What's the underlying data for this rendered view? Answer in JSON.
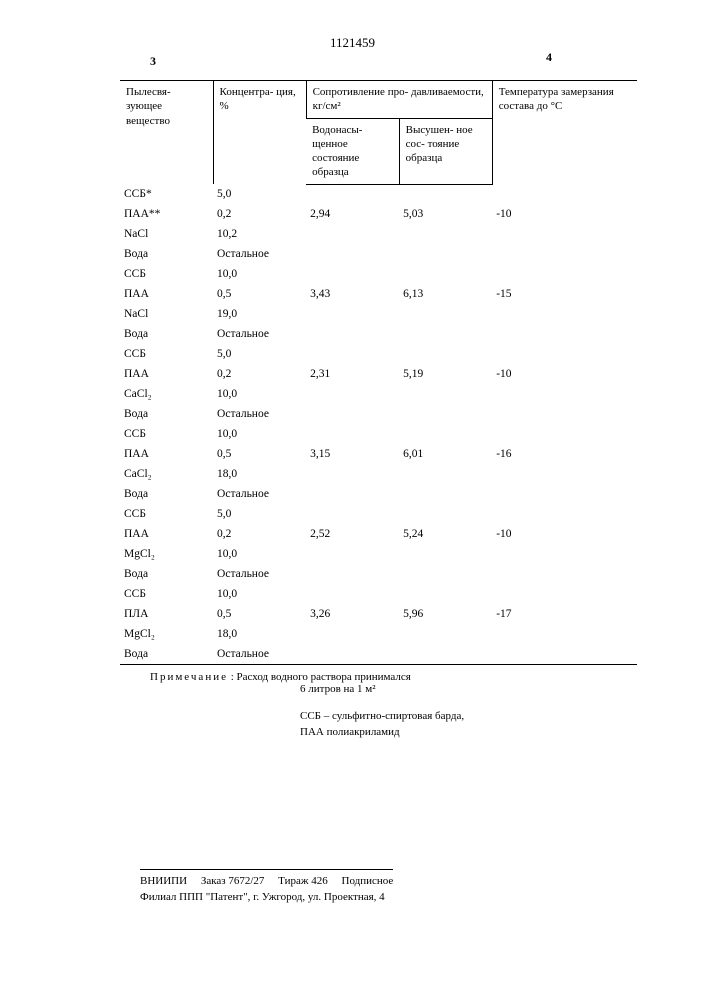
{
  "header": {
    "left_page_num": "3",
    "doc_number": "1121459",
    "right_page_num": "4"
  },
  "table": {
    "head": {
      "col1": "Пылесвя-\nзующее\nвещество",
      "col2": "Концентра-\nция, %",
      "col3": "Сопротивление про-\nдавливаемости, кг/см²",
      "col4": "Температура\nзамерзания\nсостава до °C",
      "col3a": "Водонасы-\nщенное\nсостояние\nобразца",
      "col3b": "Высушен-\nное сос-\nтояние\nобразца"
    },
    "groups": [
      {
        "rows": [
          {
            "sub": "ССБ*",
            "conc": "5,0"
          },
          {
            "sub": "ПАА**",
            "conc": "0,2",
            "wet": "2,94",
            "dry": "5,03",
            "temp": "-10"
          },
          {
            "sub": "NaCl",
            "conc": "10,2"
          },
          {
            "sub": "Вода",
            "conc": "Остальное"
          }
        ]
      },
      {
        "rows": [
          {
            "sub": "ССБ",
            "conc": "10,0"
          },
          {
            "sub": "ПАА",
            "conc": "0,5",
            "wet": "3,43",
            "dry": "6,13",
            "temp": "-15"
          },
          {
            "sub": "NaCl",
            "conc": "19,0"
          },
          {
            "sub": "Вода",
            "conc": "Остальное"
          }
        ]
      },
      {
        "rows": [
          {
            "sub": "ССБ",
            "conc": "5,0"
          },
          {
            "sub": "ПАА",
            "conc": "0,2",
            "wet": "2,31",
            "dry": "5,19",
            "temp": "-10"
          },
          {
            "sub": "CaCl₂",
            "conc": "10,0"
          },
          {
            "sub": "Вода",
            "conc": "Остальное"
          }
        ]
      },
      {
        "rows": [
          {
            "sub": "ССБ",
            "conc": "10,0"
          },
          {
            "sub": "ПАА",
            "conc": "0,5",
            "wet": "3,15",
            "dry": "6,01",
            "temp": "-16"
          },
          {
            "sub": "CaCl₂",
            "conc": "18,0"
          },
          {
            "sub": "Вода",
            "conc": "Остальное"
          }
        ]
      },
      {
        "rows": [
          {
            "sub": "ССБ",
            "conc": "5,0"
          },
          {
            "sub": "ПАА",
            "conc": "0,2",
            "wet": "2,52",
            "dry": "5,24",
            "temp": "-10"
          },
          {
            "sub": "MgCl₂",
            "conc": "10,0"
          },
          {
            "sub": "Вода",
            "conc": "Остальное"
          }
        ]
      },
      {
        "rows": [
          {
            "sub": "ССБ",
            "conc": "10,0"
          },
          {
            "sub": "ПЛА",
            "conc": "0,5",
            "wet": "3,26",
            "dry": "5,96",
            "temp": "-17"
          },
          {
            "sub": "MgCl₂",
            "conc": "18,0"
          },
          {
            "sub": "Вода",
            "conc": "Остальное"
          }
        ]
      }
    ]
  },
  "note": {
    "label": "Примечание",
    "text1": ": Расход водного раствора принимался",
    "text2": "6 литров на 1 м²"
  },
  "abbrev": {
    "line1": "ССБ – сульфитно-спиртовая барда,",
    "line2": "ПАА    полиакриламид"
  },
  "imprint": {
    "line1_a": "ВНИИПИ",
    "line1_b": "Заказ 7672/27",
    "line1_c": "Тираж 426",
    "line1_d": "Подписное",
    "line2": "Филиал ППП \"Патент\", г. Ужгород, ул. Проектная, 4"
  }
}
